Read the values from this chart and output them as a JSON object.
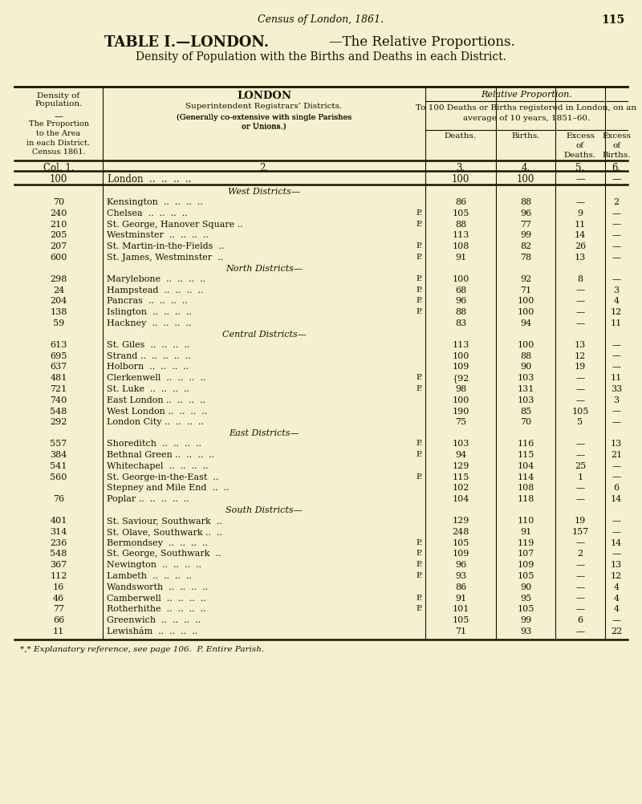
{
  "page_header": "Census of London, 1861.",
  "page_number": "115",
  "title_bold": "TABLE I.—LONDON.",
  "title_rest": "—The Relative Proportions.",
  "subtitle": "Density of Population with the Births and Deaths in each District.",
  "bg_color": "#f5f0d0",
  "text_color": "#1a1000",
  "rows": [
    {
      "section": "West Districts—",
      "density": "",
      "district": "",
      "p": "",
      "deaths": "",
      "births": "",
      "exc_deaths": "",
      "exc_births": ""
    },
    {
      "section": "",
      "density": "70",
      "district": "Kensington  ..  ..  ..  ..",
      "p": "",
      "deaths": "86",
      "births": "88",
      "exc_deaths": "—",
      "exc_births": "2"
    },
    {
      "section": "",
      "density": "240",
      "district": "Chelsea  ..  ..  ..  ..",
      "p": "P.",
      "deaths": "105",
      "births": "96",
      "exc_deaths": "9",
      "exc_births": "—"
    },
    {
      "section": "",
      "density": "210",
      "district": "St. George, Hanover Square ..",
      "p": "P.",
      "deaths": "88",
      "births": "77",
      "exc_deaths": "11",
      "exc_births": "—"
    },
    {
      "section": "",
      "density": "205",
      "district": "Westminster  ..  ..  ..  ..",
      "p": "",
      "deaths": "113",
      "births": "99",
      "exc_deaths": "14",
      "exc_births": "—"
    },
    {
      "section": "",
      "density": "207",
      "district": "St. Martin-in-the-Fields  ..",
      "p": "P.",
      "deaths": "108",
      "births": "82",
      "exc_deaths": "26",
      "exc_births": "—"
    },
    {
      "section": "",
      "density": "600",
      "district": "St. James, Westminster  ..",
      "p": "P.",
      "deaths": "91",
      "births": "78",
      "exc_deaths": "13",
      "exc_births": "—"
    },
    {
      "section": "North Districts—",
      "density": "",
      "district": "",
      "p": "",
      "deaths": "",
      "births": "",
      "exc_deaths": "",
      "exc_births": ""
    },
    {
      "section": "",
      "density": "298",
      "district": "Marylebone  ..  ..  ..  ..",
      "p": "P.",
      "deaths": "100",
      "births": "92",
      "exc_deaths": "8",
      "exc_births": "—"
    },
    {
      "section": "",
      "density": "24",
      "district": "Hampstead  ..  ..  ..  ..",
      "p": "P.",
      "deaths": "68",
      "births": "71",
      "exc_deaths": "—",
      "exc_births": "3"
    },
    {
      "section": "",
      "density": "204",
      "district": "Pancras  ..  ..  ..  ..",
      "p": "P.",
      "deaths": "96",
      "births": "100",
      "exc_deaths": "—",
      "exc_births": "4"
    },
    {
      "section": "",
      "density": "138",
      "district": "Islington  ..  ..  ..  ..",
      "p": "P.",
      "deaths": "88",
      "births": "100",
      "exc_deaths": "—",
      "exc_births": "12"
    },
    {
      "section": "",
      "density": "59",
      "district": "Hackney  ..  ..  ..  ..",
      "p": "",
      "deaths": "83",
      "births": "94",
      "exc_deaths": "—",
      "exc_births": "11"
    },
    {
      "section": "Central Districts—",
      "density": "",
      "district": "",
      "p": "",
      "deaths": "",
      "births": "",
      "exc_deaths": "",
      "exc_births": ""
    },
    {
      "section": "",
      "density": "613",
      "district": "St. Giles  ..  ..  ..  ..",
      "p": "",
      "deaths": "113",
      "births": "100",
      "exc_deaths": "13",
      "exc_births": "—"
    },
    {
      "section": "",
      "density": "695",
      "district": "Strand ..  ..  ..  ..  ..",
      "p": "",
      "deaths": "100",
      "births": "88",
      "exc_deaths": "12",
      "exc_births": "—"
    },
    {
      "section": "",
      "density": "637",
      "district": "Holborn  ..  ..  ..  ..",
      "p": "",
      "deaths": "109",
      "births": "90",
      "exc_deaths": "19",
      "exc_births": "—"
    },
    {
      "section": "",
      "density": "481",
      "district": "Clerkenwell  ..  ..  ..  ..",
      "p": "P.",
      "deaths": "{92",
      "births": "103",
      "exc_deaths": "—",
      "exc_births": "11"
    },
    {
      "section": "",
      "density": "721",
      "district": "St. Luke  ..  ..  ..  ..",
      "p": "P.",
      "deaths": "98",
      "births": "131",
      "exc_deaths": "—",
      "exc_births": "33"
    },
    {
      "section": "",
      "density": "740",
      "district": "East London ..  ..  ..  ..",
      "p": "",
      "deaths": "100",
      "births": "103",
      "exc_deaths": "—",
      "exc_births": "3"
    },
    {
      "section": "",
      "density": "548",
      "district": "West London ..  ..  ..  ..",
      "p": "",
      "deaths": "190",
      "births": "85",
      "exc_deaths": "105",
      "exc_births": "—"
    },
    {
      "section": "",
      "density": "292",
      "district": "London City ..  ..  ..  ..",
      "p": "",
      "deaths": "75",
      "births": "70",
      "exc_deaths": "5",
      "exc_births": "—"
    },
    {
      "section": "East Districts—",
      "density": "",
      "district": "",
      "p": "",
      "deaths": "",
      "births": "",
      "exc_deaths": "",
      "exc_births": ""
    },
    {
      "section": "",
      "density": "557",
      "district": "Shoreditch  ..  ..  ..  ..",
      "p": "P.",
      "deaths": "103",
      "births": "116",
      "exc_deaths": "—",
      "exc_births": "13"
    },
    {
      "section": "",
      "density": "384",
      "district": "Bethnal Green ..  ..  ..  ..",
      "p": "P.",
      "deaths": "94",
      "births": "115",
      "exc_deaths": "—",
      "exc_births": "21"
    },
    {
      "section": "",
      "density": "541",
      "district": "Whitechapel  ..  ..  ..  ..",
      "p": "",
      "deaths": "129",
      "births": "104",
      "exc_deaths": "25",
      "exc_births": "—"
    },
    {
      "section": "",
      "density": "560",
      "district": "St. George-in-the-East  ..",
      "p": "P.",
      "deaths": "115",
      "births": "114",
      "exc_deaths": "1",
      "exc_births": "—"
    },
    {
      "section": "",
      "density": "",
      "district": "Stepney and Mile End  ..  ..",
      "p": "",
      "deaths": "102",
      "births": "108",
      "exc_deaths": "—",
      "exc_births": "6"
    },
    {
      "section": "",
      "density": "76",
      "district": "Poplar ..  ..  ..  ..  ..",
      "p": "",
      "deaths": "104",
      "births": "118",
      "exc_deaths": "—",
      "exc_births": "14"
    },
    {
      "section": "South Districts—",
      "density": "",
      "district": "",
      "p": "",
      "deaths": "",
      "births": "",
      "exc_deaths": "",
      "exc_births": ""
    },
    {
      "section": "",
      "density": "401",
      "district": "St. Saviour, Southwark  ..",
      "p": "",
      "deaths": "129",
      "births": "110",
      "exc_deaths": "19",
      "exc_births": "—"
    },
    {
      "section": "",
      "density": "314",
      "district": "St. Olave, Southwark ..  ..",
      "p": "",
      "deaths": "248",
      "births": "91",
      "exc_deaths": "157",
      "exc_births": "—"
    },
    {
      "section": "",
      "density": "236",
      "district": "Bermondsey  ..  ..  ..  ..",
      "p": "P.",
      "deaths": "105",
      "births": "119",
      "exc_deaths": "—",
      "exc_births": "14"
    },
    {
      "section": "",
      "density": "548",
      "district": "St. George, Southwark  ..",
      "p": "P.",
      "deaths": "109",
      "births": "107",
      "exc_deaths": "2",
      "exc_births": "—"
    },
    {
      "section": "",
      "density": "367",
      "district": "Newington  ..  ..  ..  ..",
      "p": "P.",
      "deaths": "96",
      "births": "109",
      "exc_deaths": "—",
      "exc_births": "13"
    },
    {
      "section": "",
      "density": "112",
      "district": "Lambeth  ..  ..  ..  ..",
      "p": "P.",
      "deaths": "93",
      "births": "105",
      "exc_deaths": "—",
      "exc_births": "12"
    },
    {
      "section": "",
      "density": "16",
      "district": "Wandsworth  ..  ..  ..  ..",
      "p": "",
      "deaths": "86",
      "births": "90",
      "exc_deaths": "—",
      "exc_births": "4"
    },
    {
      "section": "",
      "density": "46",
      "district": "Camberwell  ..  ..  ..  ..",
      "p": "P.",
      "deaths": "91",
      "births": "95",
      "exc_deaths": "—",
      "exc_births": "4"
    },
    {
      "section": "",
      "density": "77",
      "district": "Rotherhithe  ..  ..  ..  ..",
      "p": "P.",
      "deaths": "101",
      "births": "105",
      "exc_deaths": "—",
      "exc_births": "4"
    },
    {
      "section": "",
      "density": "66",
      "district": "Greenwich  ..  ..  ..  ..",
      "p": "",
      "deaths": "105",
      "births": "99",
      "exc_deaths": "6",
      "exc_births": "—"
    },
    {
      "section": "",
      "density": "11",
      "district": "Lewishám  ..  ..  ..  ..",
      "p": "",
      "deaths": "71",
      "births": "93",
      "exc_deaths": "—",
      "exc_births": "22"
    }
  ],
  "footnote": "*,* Explanatory reference, see page 106.  P. Entire Parish."
}
